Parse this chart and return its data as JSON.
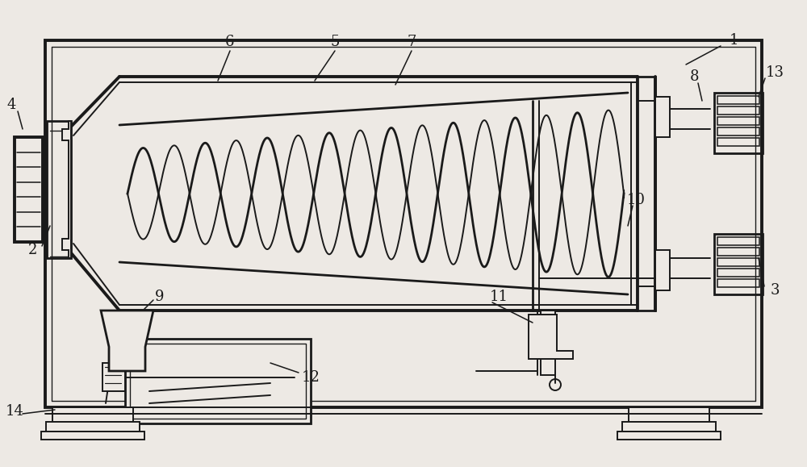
{
  "bg_color": "#ede9e4",
  "line_color": "#1a1a1a",
  "lw": 1.4,
  "lw2": 2.0,
  "lw3": 2.8
}
